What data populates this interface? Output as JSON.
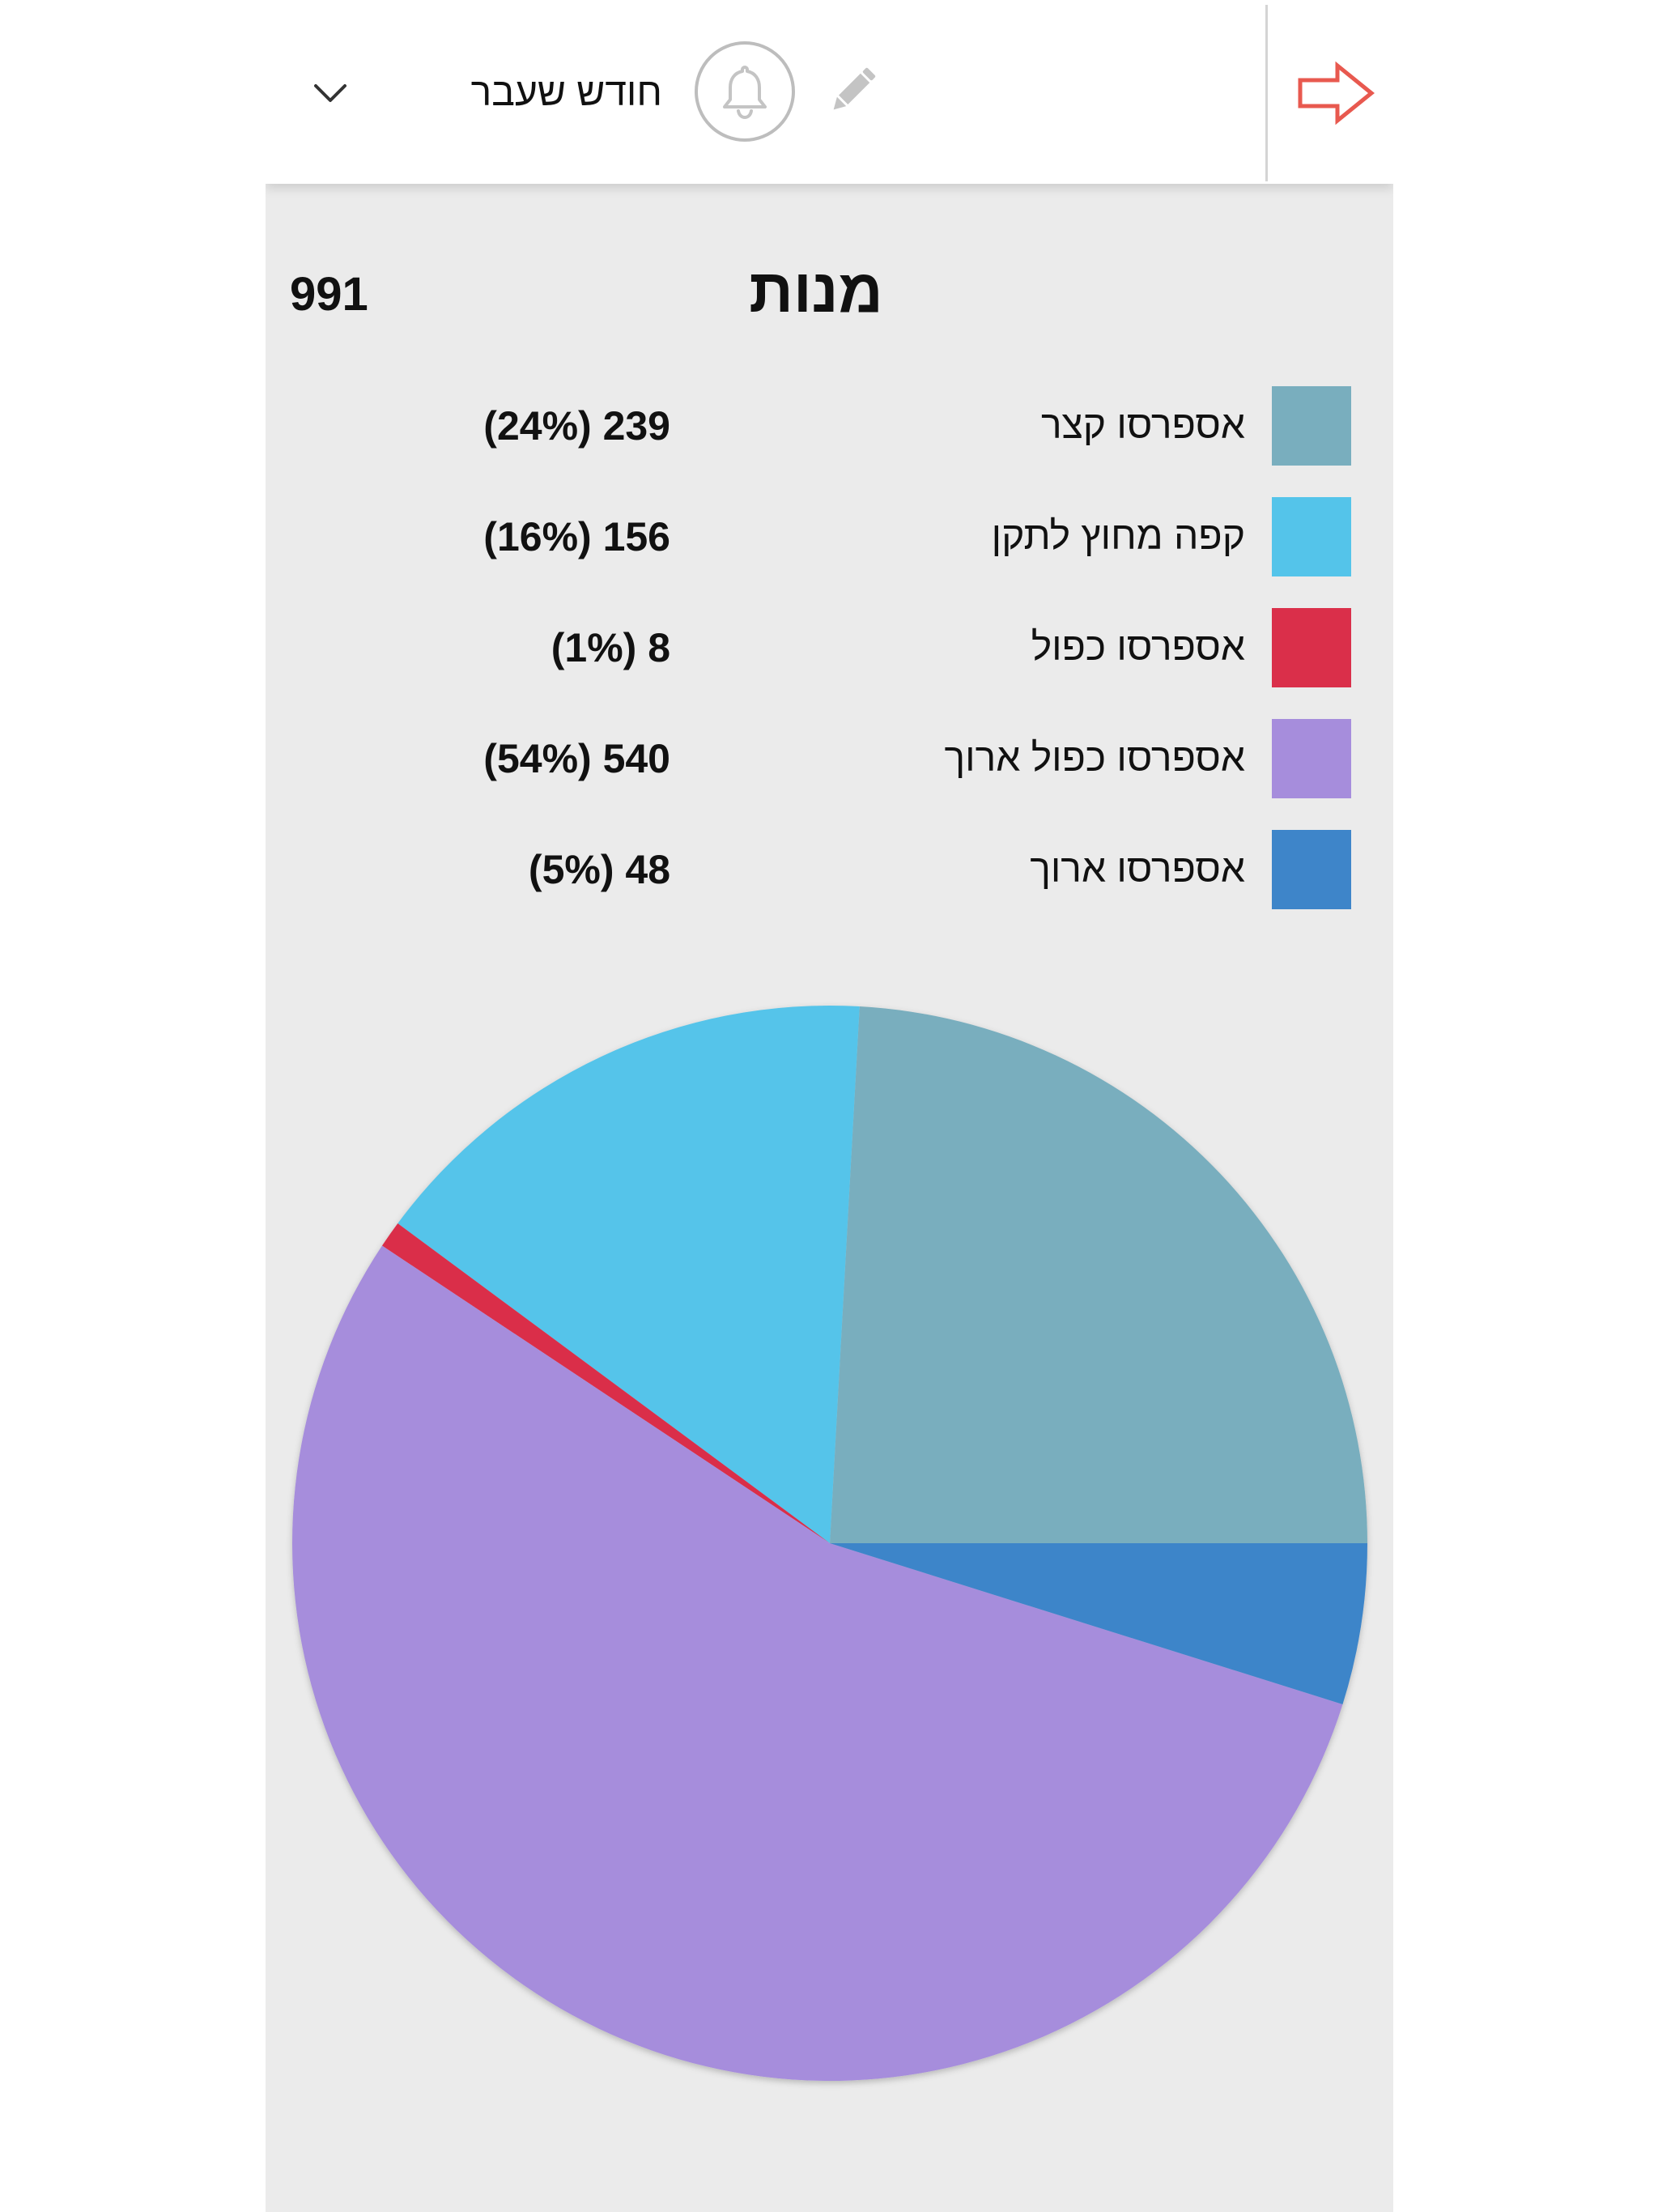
{
  "header": {
    "period_label": "חודש שעבר",
    "icons": {
      "back": "arrow-right-icon",
      "dropdown": "chevron-down-icon",
      "notifications": "bell-icon",
      "edit": "pencil-icon"
    },
    "accent_color": "#e8594f"
  },
  "section": {
    "title": "מנות",
    "total": "991"
  },
  "legend": [
    {
      "name": "אספרסו קצר",
      "value": "(24%) 239",
      "color": "#79aebe"
    },
    {
      "name": "קפה מחוץ לתקן",
      "value": "(16%) 156",
      "color": "#54c4ea"
    },
    {
      "name": "אספרסו כפול",
      "value": "(1%) 8",
      "color": "#da2f4a"
    },
    {
      "name": "אספרסו כפול ארוך",
      "value": "(54%) 540",
      "color": "#a68ddc"
    },
    {
      "name": "אספרסו ארוך",
      "value": "(5%) 48",
      "color": "#3e85c9"
    }
  ],
  "chart_data": {
    "type": "pie",
    "categories": [
      "אספרסו קצר",
      "קפה מחוץ לתקן",
      "אספרסו כפול",
      "אספרסו כפול ארוך",
      "אספרסו ארוך"
    ],
    "values": [
      239,
      156,
      8,
      540,
      48
    ],
    "percentages": [
      24,
      16,
      1,
      54,
      5
    ],
    "colors": [
      "#79aebe",
      "#54c4ea",
      "#da2f4a",
      "#a68ddc",
      "#3e85c9"
    ],
    "total": 991,
    "start": "right (3 o'clock)",
    "direction": "counter-clockwise",
    "legend_position": "top"
  }
}
